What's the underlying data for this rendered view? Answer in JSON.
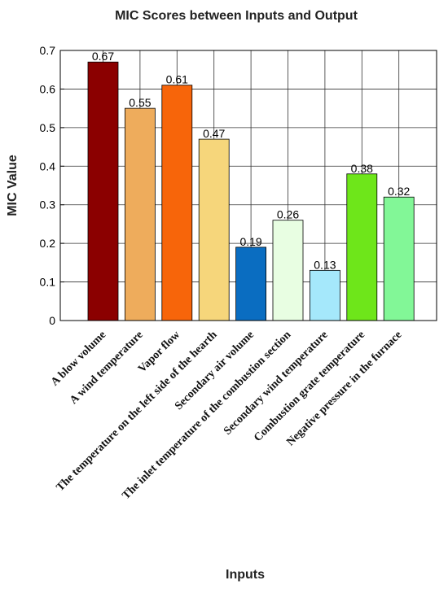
{
  "chart_data": {
    "type": "bar",
    "title": "MIC Scores between Inputs and Output",
    "xlabel": "Inputs",
    "ylabel": "MIC Value",
    "ylim": [
      0,
      0.7
    ],
    "yticks": [
      "0",
      "0.1",
      "0.2",
      "0.3",
      "0.4",
      "0.5",
      "0.6",
      "0.7"
    ],
    "ytick_values": [
      0,
      0.1,
      0.2,
      0.3,
      0.4,
      0.5,
      0.6,
      0.7
    ],
    "grid": true,
    "categories": [
      "A blow volume",
      "A wind temperature",
      "Vapor flow",
      "The temperature on the left side of the hearth",
      "Secondary air volume",
      "The inlet temperature of the combustion section",
      "Secondary wind temperature",
      "Combustion grate temperature",
      "Negative pressure in the furnace"
    ],
    "values": [
      0.67,
      0.55,
      0.61,
      0.47,
      0.19,
      0.26,
      0.13,
      0.38,
      0.32
    ],
    "value_labels": [
      "0.67",
      "0.55",
      "0.61",
      "0.47",
      "0.19",
      "0.26",
      "0.13",
      "0.38",
      "0.32"
    ],
    "colors": [
      "#8b0000",
      "#eeac5c",
      "#f7650a",
      "#f6d67b",
      "#0a6dc1",
      "#e8fee2",
      "#a5e8fb",
      "#6ee61a",
      "#82f797"
    ]
  }
}
